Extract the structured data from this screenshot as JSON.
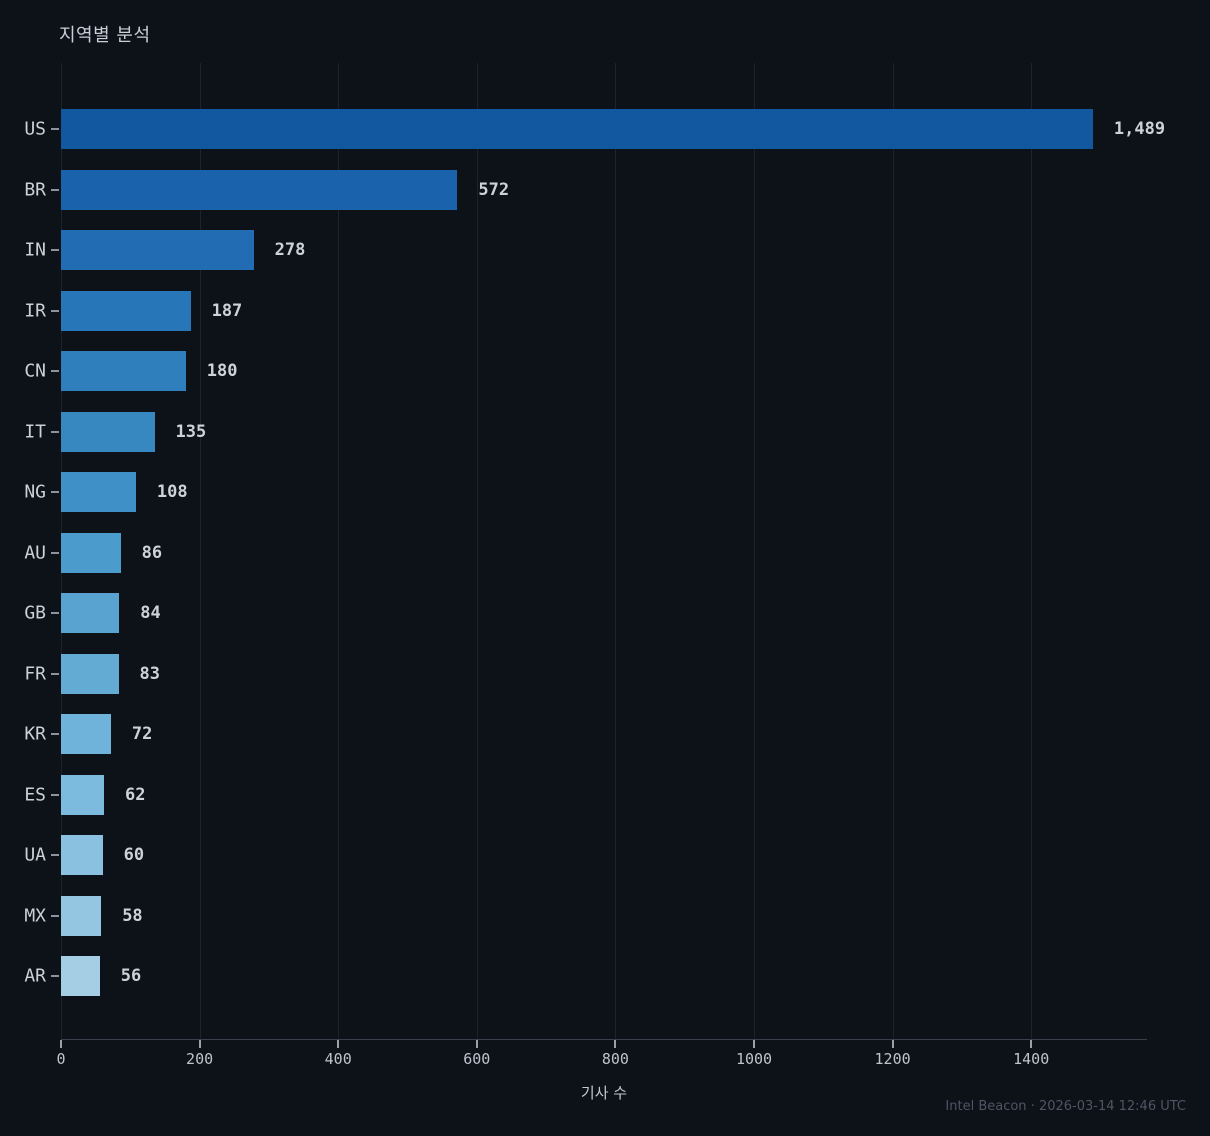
{
  "chart": {
    "title": "지역별 분석",
    "xlabel": "기사 수"
  },
  "footer": {
    "text": "Intel Beacon · 2026-03-14 12:46 UTC"
  },
  "colors": {
    "background": "#0d1118",
    "gridline": "#1c2330",
    "axis_spine": "#39414f",
    "tick_mark": "#9aa1ad",
    "label_text": "#ccd1d8",
    "value_text": "#cdd2d9",
    "footer_text": "#4d5664"
  },
  "chart_data": {
    "type": "bar",
    "orientation": "horizontal",
    "title": "지역별 분석",
    "xlabel": "기사 수",
    "ylabel": "",
    "categories": [
      "US",
      "BR",
      "IN",
      "IR",
      "CN",
      "IT",
      "NG",
      "AU",
      "GB",
      "FR",
      "KR",
      "ES",
      "UA",
      "MX",
      "AR"
    ],
    "values": [
      1489,
      572,
      278,
      187,
      180,
      135,
      108,
      86,
      84,
      83,
      72,
      62,
      60,
      58,
      56
    ],
    "value_labels": [
      "1,489",
      "572",
      "278",
      "187",
      "180",
      "135",
      "108",
      "86",
      "84",
      "83",
      "72",
      "62",
      "60",
      "58",
      "56"
    ],
    "bar_colors": [
      "#1158a1",
      "#1a63ac",
      "#216cb2",
      "#2776b8",
      "#2e7fbc",
      "#3787c1",
      "#3f90c6",
      "#4b9bcc",
      "#58a3cf",
      "#63abd3",
      "#6fb2da",
      "#7cbade",
      "#8ac1e0",
      "#95c6e1",
      "#a5cde4"
    ],
    "xlim": [
      0,
      1567
    ],
    "xticks": [
      0,
      200,
      400,
      600,
      800,
      1000,
      1200,
      1400
    ],
    "grid": "vertical-only",
    "legend": "none",
    "value_labels_position": "right-of-bar"
  }
}
